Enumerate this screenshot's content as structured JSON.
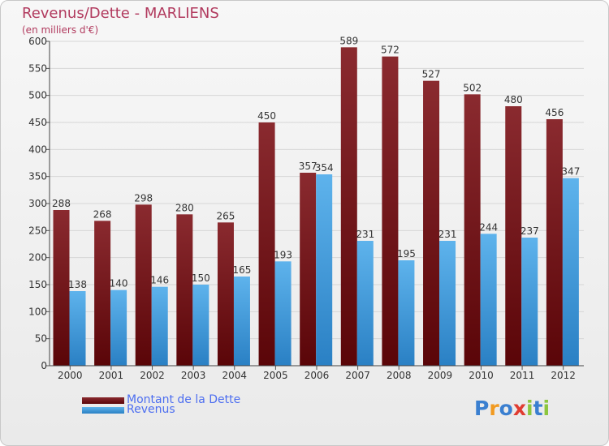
{
  "header": {
    "title": "Revenus/Dette - MARLIENS",
    "subtitle": "(en milliers d'€)"
  },
  "legend": {
    "items": [
      {
        "label": "Montant de la Dette",
        "color": "#6b0f12"
      },
      {
        "label": "Revenus",
        "color": "#3f9bdc"
      }
    ]
  },
  "logo": {
    "text": "Proxiti",
    "letter_colors": [
      "#3a7fd0",
      "#f19a21",
      "#3a7fd0",
      "#e03c31",
      "#8cc63e",
      "#3a7fd0",
      "#8cc63e"
    ]
  },
  "chart_data": {
    "type": "bar",
    "categories": [
      "2000",
      "2001",
      "2002",
      "2003",
      "2004",
      "2005",
      "2006",
      "2007",
      "2008",
      "2009",
      "2010",
      "2011",
      "2012"
    ],
    "series": [
      {
        "name": "Montant de la Dette",
        "values": [
          288,
          268,
          298,
          280,
          265,
          450,
          357,
          589,
          572,
          527,
          502,
          480,
          456
        ],
        "color": "#6b0f12"
      },
      {
        "name": "Revenus",
        "values": [
          138,
          140,
          146,
          150,
          165,
          193,
          354,
          231,
          195,
          231,
          244,
          237,
          347
        ],
        "color": "#3f9bdc"
      }
    ],
    "ylim": [
      0,
      600
    ],
    "yticks": [
      0,
      50,
      100,
      150,
      200,
      250,
      300,
      350,
      400,
      450,
      500,
      550,
      600
    ],
    "grid": true,
    "legend_position": "bottom-left"
  }
}
